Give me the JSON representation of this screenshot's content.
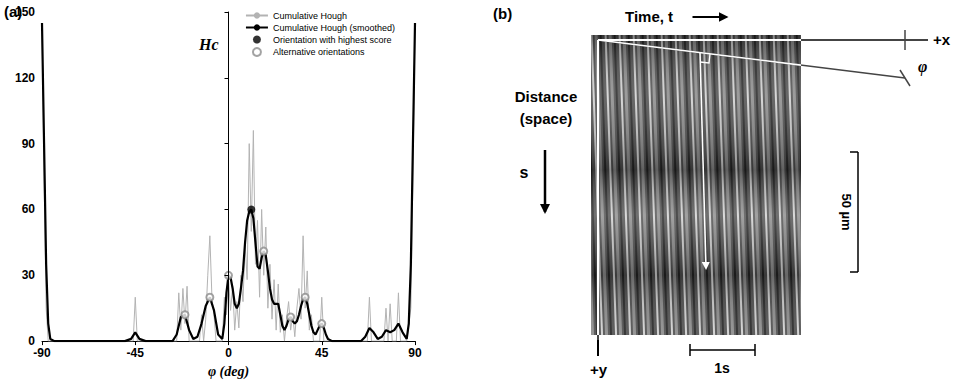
{
  "chart_data": {
    "type": "line",
    "panel_label": "(a)",
    "xlabel": "φ (deg)",
    "ylabel": "Hc",
    "xlim": [
      -90,
      90
    ],
    "xticks": [
      -90,
      -45,
      0,
      45,
      90
    ],
    "ylim": [
      0,
      150
    ],
    "yticks": [
      0,
      30,
      60,
      90,
      120,
      150
    ],
    "grid": false,
    "legend": "upper right",
    "series": [
      {
        "name": "Cumulative Hough",
        "type": "line",
        "color": "#b3b3b3",
        "line_style": "solid",
        "x": [
          -90,
          -89,
          -88,
          -87,
          -46,
          -45,
          -44,
          -25,
          -24,
          -23,
          -22,
          -21,
          -20,
          -19,
          -14,
          -13,
          -12,
          -11,
          -10,
          -9,
          -8,
          -7,
          -6,
          -3,
          -2,
          -1,
          0,
          1,
          2,
          3,
          4,
          5,
          6,
          7,
          8,
          9,
          10,
          11,
          12,
          13,
          14,
          15,
          16,
          17,
          18,
          19,
          20,
          21,
          22,
          23,
          24,
          25,
          26,
          27,
          28,
          29,
          30,
          31,
          32,
          33,
          34,
          35,
          36,
          37,
          38,
          39,
          40,
          41,
          44,
          45,
          46,
          67,
          68,
          69,
          75,
          76,
          77,
          78,
          79,
          81,
          82,
          83,
          86,
          88,
          89,
          90
        ],
        "values": [
          145,
          75,
          15,
          0,
          0,
          20,
          0,
          0,
          22,
          5,
          24,
          8,
          25,
          0,
          0,
          12,
          0,
          10,
          30,
          48,
          20,
          12,
          0,
          0,
          20,
          12,
          28,
          14,
          25,
          5,
          18,
          6,
          30,
          18,
          45,
          28,
          90,
          50,
          96,
          35,
          55,
          20,
          60,
          30,
          52,
          15,
          35,
          10,
          28,
          5,
          26,
          4,
          12,
          0,
          10,
          18,
          5,
          12,
          2,
          15,
          24,
          10,
          48,
          15,
          32,
          5,
          12,
          0,
          0,
          20,
          0,
          0,
          20,
          0,
          0,
          15,
          0,
          17,
          0,
          0,
          22,
          0,
          0,
          15,
          75,
          145
        ]
      },
      {
        "name": "Cumulative Hough (smoothed)",
        "type": "line",
        "color": "#000000",
        "line_style": "solid",
        "x": [
          -90,
          -89,
          -88,
          -87,
          -86,
          -84,
          -50,
          -47,
          -45,
          -43,
          -40,
          -27,
          -25,
          -23,
          -21,
          -19,
          -17,
          -15,
          -13,
          -11,
          -9,
          -7,
          -5,
          -3,
          -2,
          -1,
          0,
          1,
          2,
          3,
          4,
          5,
          6,
          7,
          8,
          9,
          10,
          11,
          12,
          13,
          14,
          15,
          16,
          17,
          18,
          19,
          20,
          21,
          22,
          23,
          24,
          25,
          26,
          27,
          28,
          29,
          30,
          31,
          32,
          33,
          34,
          35,
          36,
          37,
          38,
          39,
          40,
          41,
          42,
          43,
          44,
          45,
          46,
          47,
          48,
          50,
          64,
          66,
          68,
          70,
          72,
          74,
          76,
          78,
          80,
          82,
          84,
          86,
          87,
          88,
          89,
          90
        ],
        "values": [
          145,
          90,
          35,
          8,
          1,
          0,
          0,
          1,
          4,
          1,
          0,
          0,
          3,
          11,
          12,
          5,
          1,
          2,
          8,
          16,
          20,
          14,
          3,
          1,
          8,
          22,
          30,
          29,
          24,
          17,
          15,
          17,
          24,
          32,
          45,
          55,
          59,
          60,
          56,
          45,
          34,
          33,
          38,
          41,
          39,
          32,
          24,
          19,
          17,
          17,
          17,
          12,
          7,
          5,
          7,
          10,
          11,
          9,
          8,
          9,
          12,
          16,
          19,
          20,
          17,
          12,
          7,
          4,
          3,
          5,
          7,
          8,
          6,
          3,
          1,
          0,
          0,
          2,
          6,
          4,
          1,
          2,
          5,
          4,
          5,
          8,
          4,
          1,
          8,
          35,
          90,
          145
        ]
      },
      {
        "name": "Orientation with highest score",
        "type": "scatter",
        "color": "#000000",
        "marker": "circle",
        "x": [
          11
        ],
        "values": [
          60
        ]
      },
      {
        "name": "Alternative orientations",
        "type": "scatter",
        "color": "#8c8c8c",
        "marker": "open_circle",
        "x": [
          -21,
          -9,
          0,
          17,
          30,
          37,
          45
        ],
        "values": [
          12,
          20,
          30,
          41,
          11,
          20,
          8
        ]
      }
    ]
  },
  "diagram": {
    "panel_label": "(b)",
    "time_axis": "Time, t",
    "space_axis": "Distance (space)",
    "space_direction": "s",
    "x_axis": "+x",
    "y_axis": "+y",
    "angle": "φ",
    "space_scale": "50 µm",
    "time_scale": "1s"
  }
}
